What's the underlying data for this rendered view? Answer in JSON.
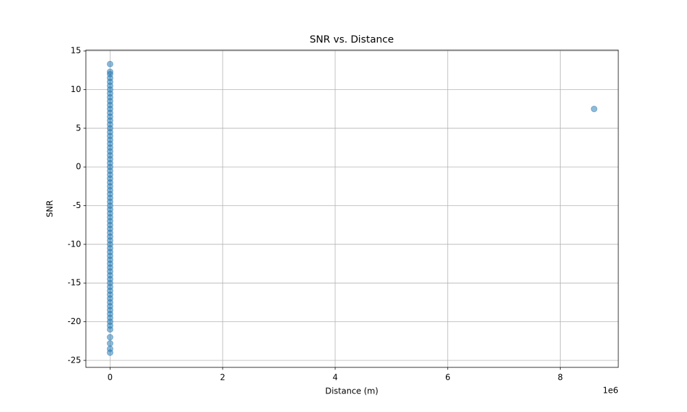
{
  "chart_data": {
    "type": "scatter",
    "title": "SNR vs. Distance",
    "x_label": "Distance (m)",
    "y_label": "SNR",
    "x_offset_label": "1e6",
    "series": [
      {
        "color": "#1f77b4",
        "x": [
          0,
          0,
          0,
          0,
          0,
          0,
          0,
          0,
          0,
          0,
          0,
          0,
          0,
          0,
          0,
          0,
          0,
          0,
          0,
          0,
          0,
          0,
          0,
          0,
          0,
          0,
          0,
          0,
          0,
          0,
          0,
          0,
          0,
          0,
          0,
          0,
          0,
          0,
          0,
          0,
          0,
          0,
          0,
          0,
          0,
          0,
          0,
          0,
          0,
          0,
          0,
          0,
          0,
          0,
          0,
          0,
          0,
          0,
          0,
          0,
          0,
          0,
          0,
          0,
          0,
          0,
          0,
          0,
          0,
          0,
          0,
          0,
          0,
          8600000
        ],
        "values": [
          13.3,
          12.3,
          12.0,
          11.5,
          11.0,
          10.5,
          10.0,
          9.5,
          9.0,
          8.5,
          8.0,
          7.5,
          7.0,
          6.5,
          6.0,
          5.5,
          5.0,
          4.5,
          4.0,
          3.5,
          3.0,
          2.5,
          2.0,
          1.5,
          1.0,
          0.5,
          0.0,
          -0.5,
          -1.0,
          -1.5,
          -2.0,
          -2.5,
          -3.0,
          -3.5,
          -4.0,
          -4.5,
          -5.0,
          -5.5,
          -6.0,
          -6.5,
          -7.0,
          -7.5,
          -8.0,
          -8.5,
          -9.0,
          -9.5,
          -10.0,
          -10.5,
          -11.0,
          -11.5,
          -12.0,
          -12.5,
          -13.0,
          -13.5,
          -14.0,
          -14.5,
          -15.0,
          -15.5,
          -16.0,
          -16.5,
          -17.0,
          -17.5,
          -18.0,
          -18.5,
          -19.0,
          -19.5,
          -20.0,
          -20.5,
          -21.0,
          -22.0,
          -22.8,
          -23.5,
          -24.0,
          7.5
        ]
      }
    ],
    "xlim": [
      -430000,
      9030000
    ],
    "xticks": [
      0,
      {
        "value": 2000000,
        "label": "2"
      },
      {
        "value": 4000000,
        "label": "4"
      },
      {
        "value": 6000000,
        "label": "6"
      },
      {
        "value": 8000000,
        "label": "8"
      }
    ],
    "ylim": [
      -25.9,
      15.1
    ],
    "yticks": [
      -25,
      -20,
      -15,
      -10,
      -5,
      0,
      5,
      10,
      15
    ],
    "grid": true
  }
}
